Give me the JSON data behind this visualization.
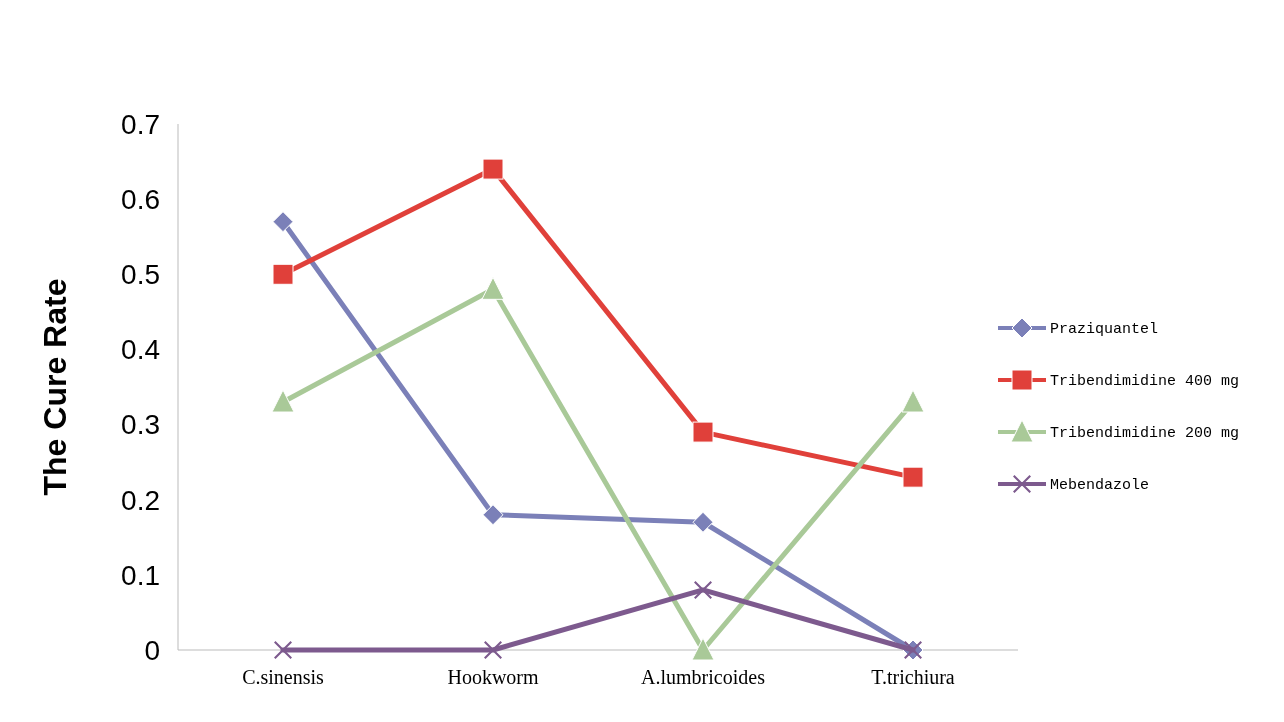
{
  "chart_data": {
    "type": "line",
    "ylabel": "The Cure Rate",
    "categories": [
      "C.sinensis",
      "Hookworm",
      "A.lumbricoides",
      "T.trichiura"
    ],
    "series": [
      {
        "name": "Praziquantel",
        "color": "#7b80b8",
        "marker": "diamond",
        "values": [
          0.57,
          0.18,
          0.17,
          0
        ]
      },
      {
        "name": "Tribendimidine 400 mg",
        "color": "#e0403a",
        "marker": "square",
        "values": [
          0.5,
          0.64,
          0.29,
          0.23
        ]
      },
      {
        "name": "Tribendimidine 200 mg",
        "color": "#a9c998",
        "marker": "triangle",
        "values": [
          0.33,
          0.48,
          0,
          0.33
        ]
      },
      {
        "name": "Mebendazole",
        "color": "#7d5a8e",
        "marker": "cross",
        "values": [
          0,
          0,
          0.08,
          0
        ]
      }
    ],
    "ylim": [
      0,
      0.7
    ],
    "yticks": [
      0,
      0.1,
      0.2,
      0.3,
      0.4,
      0.5,
      0.6,
      0.7
    ],
    "grid": false,
    "legend": "right"
  }
}
